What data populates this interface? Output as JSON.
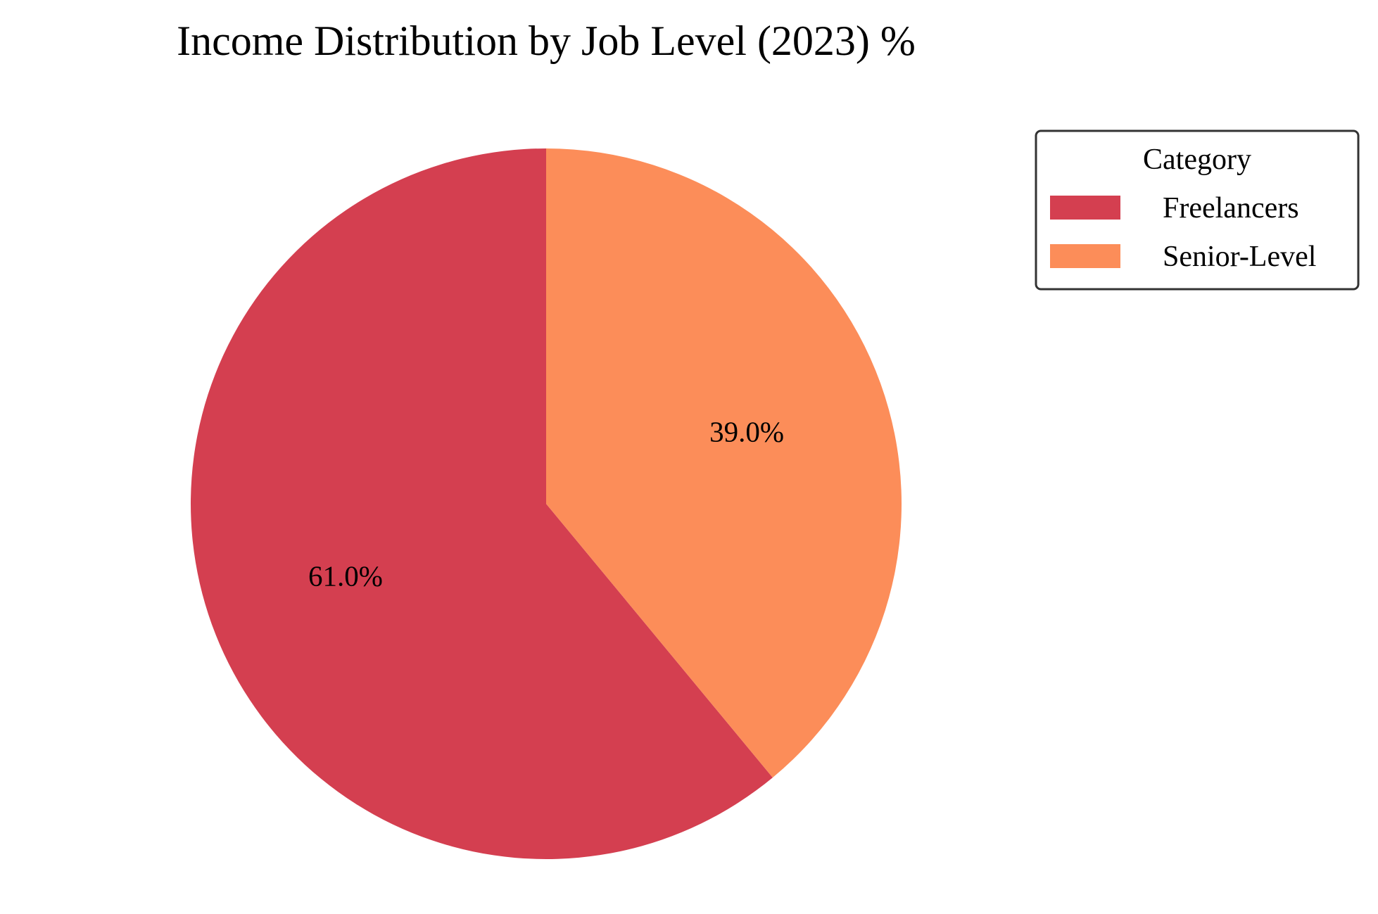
{
  "chart_data": {
    "type": "pie",
    "title": "Income Distribution by Job Level (2023) %",
    "categories": [
      "Freelancers",
      "Senior-Level"
    ],
    "values": [
      61.0,
      39.0
    ],
    "labels": [
      "61.0%",
      "39.0%"
    ],
    "colors": [
      "#d43f50",
      "#fc8d59"
    ],
    "start_angle_deg": 90,
    "direction": "counterclockwise",
    "legend": {
      "title": "Category",
      "placement": "upper-right"
    }
  }
}
